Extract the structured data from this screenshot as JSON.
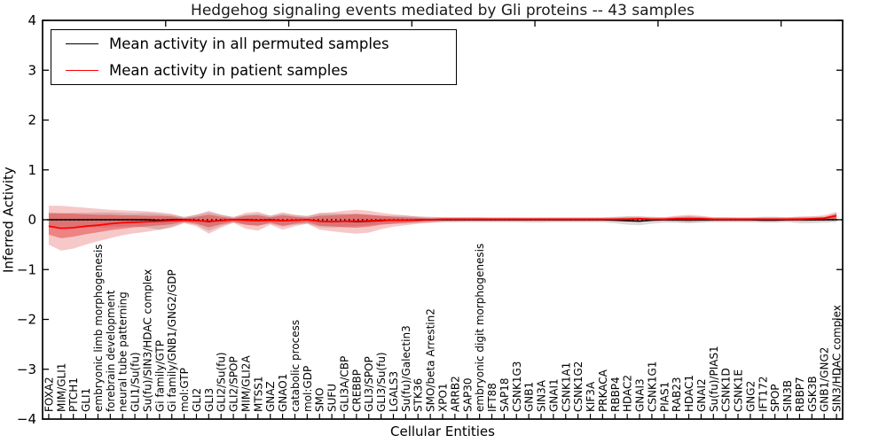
{
  "title": "Hedgehog signaling events mediated by Gli proteins -- 43 samples",
  "axes": {
    "x_label": "Cellular Entities",
    "y_label": "Inferred Activity"
  },
  "legend": {
    "items": [
      {
        "label": "Mean activity in all permuted samples",
        "color": "#000000"
      },
      {
        "label": "Mean activity in patient samples",
        "color": "#ff0000"
      }
    ]
  },
  "colors": {
    "background": "#ffffff",
    "axis": "#000000",
    "patient_line": "#ff0000",
    "permuted_line": "#000000",
    "patient_band_inner": "rgba(225,35,35,0.42)",
    "patient_band_outer": "rgba(225,35,35,0.25)",
    "permuted_band": "rgba(135,135,135,0.30)"
  },
  "chart_data": {
    "type": "line",
    "title": "Hedgehog signaling events mediated by Gli proteins -- 43 samples",
    "xlabel": "Cellular Entities",
    "ylabel": "Inferred Activity",
    "ylim": [
      -4,
      4
    ],
    "yticks": [
      4,
      3,
      2,
      1,
      0,
      -1,
      -2,
      -3,
      -4
    ],
    "x_major_tick_step": 10,
    "grid": false,
    "legend_position": "upper left",
    "zero_line_style": "dotted",
    "categories": [
      "FOXA2",
      "MIM/GLI1",
      "PTCH1",
      "GLI1",
      "embryonic limb morphogenesis",
      "forebrain development",
      "neural tube patterning",
      "GLI1/Su(fu)",
      "Su(fu)/SIN3/HDAC complex",
      "Gi family/GTP",
      "Gi family/GNB1/GNG2/GDP",
      "mol:GTP",
      "GLI2",
      "GLI3",
      "GLI2/Su(fu)",
      "GLI2/SPOP",
      "MIM/GLI2A",
      "MTSS1",
      "GNAZ",
      "GNAO1",
      "catabolic process",
      "mol:GDP",
      "SMO",
      "SUFU",
      "GLI3A/CBP",
      "CREBBP",
      "GLI3/SPOP",
      "GLI3/Su(fu)",
      "LGALS3",
      "Su(fu)/Galectin3",
      "STK36",
      "SMO/beta Arrestin2",
      "XPO1",
      "ARRB2",
      "SAP30",
      "embryonic digit morphogenesis",
      "IFT88",
      "SAP18",
      "CSNK1G3",
      "GNB1",
      "SIN3A",
      "GNAI1",
      "CSNK1A1",
      "CSNK1G2",
      "KIF3A",
      "PRKACA",
      "RBBP4",
      "HDAC2",
      "GNAI3",
      "CSNK1G1",
      "PIAS1",
      "RAB23",
      "HDAC1",
      "GNAI2",
      "Su(fu)/PIAS1",
      "CSNK1D",
      "CSNK1E",
      "GNG2",
      "IFT172",
      "SPOP",
      "SIN3B",
      "RBBP7",
      "GSK3B",
      "GNB1/GNG2",
      "SIN3/HDAC complex"
    ],
    "series": [
      {
        "id": "permuted-mean",
        "name": "Mean activity in all permuted samples",
        "color": "#000000",
        "width": 1.4,
        "values": [
          0,
          0,
          0,
          0,
          0,
          0,
          0,
          0,
          0,
          -0.01,
          0,
          0,
          -0.01,
          -0.04,
          -0.01,
          0,
          0,
          -0.01,
          0,
          -0.02,
          -0.01,
          0,
          -0.03,
          -0.04,
          -0.03,
          -0.04,
          -0.03,
          -0.02,
          -0.01,
          -0.01,
          -0.01,
          0,
          0,
          0,
          0,
          0,
          0,
          0,
          0,
          0,
          0,
          0,
          0,
          0,
          0,
          0,
          -0.01,
          -0.02,
          -0.03,
          -0.01,
          0,
          0,
          0,
          0,
          0,
          0,
          0,
          0,
          -0.01,
          -0.01,
          0,
          0,
          0,
          0,
          0
        ]
      },
      {
        "id": "patient-mean",
        "name": "Mean activity in patient samples",
        "color": "#ff0000",
        "width": 1.8,
        "values": [
          -0.13,
          -0.17,
          -0.16,
          -0.13,
          -0.11,
          -0.08,
          -0.06,
          -0.05,
          -0.04,
          -0.03,
          -0.02,
          -0.01,
          -0.02,
          -0.03,
          -0.02,
          0,
          -0.01,
          -0.02,
          -0.01,
          -0.02,
          -0.01,
          0,
          -0.03,
          -0.04,
          -0.03,
          -0.03,
          -0.02,
          -0.01,
          -0.01,
          -0.01,
          0,
          0,
          0.01,
          0.01,
          0.01,
          0.01,
          0.01,
          0.01,
          0.01,
          0.01,
          0.01,
          0.01,
          0.01,
          0.01,
          0.01,
          0.01,
          0.01,
          0.01,
          0.02,
          0.01,
          0.01,
          0.02,
          0.02,
          0.02,
          0.01,
          0.01,
          0.01,
          0.01,
          0.01,
          0.01,
          0.01,
          0.01,
          0.02,
          0.03,
          0.08
        ]
      }
    ],
    "bands": [
      {
        "id": "permuted-range",
        "name": "permuted samples spread",
        "color": "rgba(135,135,135,0.30)",
        "hi": [
          0.12,
          0.13,
          0.14,
          0.14,
          0.15,
          0.15,
          0.14,
          0.13,
          0.14,
          0.12,
          0.1,
          0.06,
          0.1,
          0.15,
          0.1,
          0.06,
          0.1,
          0.12,
          0.08,
          0.12,
          0.09,
          0.08,
          0.12,
          0.13,
          0.12,
          0.11,
          0.1,
          0.08,
          0.08,
          0.08,
          0.07,
          0.06,
          0.05,
          0.05,
          0.05,
          0.05,
          0.05,
          0.05,
          0.05,
          0.05,
          0.05,
          0.05,
          0.05,
          0.05,
          0.05,
          0.05,
          0.06,
          0.07,
          0.07,
          0.06,
          0.05,
          0.06,
          0.07,
          0.06,
          0.05,
          0.05,
          0.05,
          0.05,
          0.06,
          0.06,
          0.05,
          0.06,
          0.06,
          0.06,
          0.06
        ],
        "lo": [
          -0.12,
          -0.13,
          -0.14,
          -0.14,
          -0.15,
          -0.15,
          -0.14,
          -0.13,
          -0.16,
          -0.2,
          -0.14,
          -0.06,
          -0.1,
          -0.22,
          -0.12,
          -0.06,
          -0.1,
          -0.12,
          -0.08,
          -0.14,
          -0.1,
          -0.08,
          -0.15,
          -0.16,
          -0.14,
          -0.13,
          -0.11,
          -0.09,
          -0.08,
          -0.08,
          -0.07,
          -0.06,
          -0.05,
          -0.05,
          -0.05,
          -0.05,
          -0.05,
          -0.05,
          -0.05,
          -0.06,
          -0.06,
          -0.05,
          -0.05,
          -0.05,
          -0.05,
          -0.05,
          -0.07,
          -0.1,
          -0.11,
          -0.08,
          -0.06,
          -0.06,
          -0.07,
          -0.06,
          -0.05,
          -0.05,
          -0.05,
          -0.05,
          -0.06,
          -0.06,
          -0.05,
          -0.07,
          -0.07,
          -0.06,
          -0.05
        ]
      },
      {
        "id": "patient-range-outer",
        "name": "patient samples outer spread",
        "color": "rgba(225,35,35,0.25)",
        "hi": [
          0.28,
          0.28,
          0.26,
          0.24,
          0.22,
          0.2,
          0.19,
          0.18,
          0.17,
          0.15,
          0.12,
          0.05,
          0.1,
          0.18,
          0.1,
          0.05,
          0.14,
          0.16,
          0.08,
          0.15,
          0.1,
          0.07,
          0.14,
          0.15,
          0.18,
          0.2,
          0.18,
          0.14,
          0.11,
          0.09,
          0.06,
          0.05,
          0.05,
          0.05,
          0.05,
          0.05,
          0.04,
          0.04,
          0.04,
          0.04,
          0.04,
          0.04,
          0.04,
          0.04,
          0.04,
          0.04,
          0.05,
          0.06,
          0.06,
          0.05,
          0.05,
          0.08,
          0.1,
          0.08,
          0.05,
          0.05,
          0.04,
          0.04,
          0.05,
          0.05,
          0.05,
          0.06,
          0.07,
          0.09,
          0.16
        ],
        "lo": [
          -0.5,
          -0.62,
          -0.58,
          -0.5,
          -0.43,
          -0.37,
          -0.31,
          -0.27,
          -0.24,
          -0.2,
          -0.16,
          -0.07,
          -0.13,
          -0.28,
          -0.16,
          -0.06,
          -0.18,
          -0.22,
          -0.1,
          -0.2,
          -0.13,
          -0.08,
          -0.2,
          -0.23,
          -0.26,
          -0.28,
          -0.26,
          -0.19,
          -0.14,
          -0.11,
          -0.08,
          -0.06,
          -0.04,
          -0.04,
          -0.03,
          -0.03,
          -0.03,
          -0.03,
          -0.03,
          -0.03,
          -0.03,
          -0.03,
          -0.03,
          -0.03,
          -0.03,
          -0.03,
          -0.03,
          -0.04,
          -0.04,
          -0.03,
          -0.03,
          -0.04,
          -0.05,
          -0.04,
          -0.03,
          -0.03,
          -0.03,
          -0.03,
          -0.03,
          -0.03,
          -0.03,
          -0.03,
          -0.03,
          -0.03,
          -0.02
        ]
      },
      {
        "id": "patient-range-inner",
        "name": "patient samples inner spread",
        "color": "rgba(225,35,35,0.42)",
        "hi": [
          0.14,
          0.13,
          0.12,
          0.11,
          0.1,
          0.1,
          0.09,
          0.09,
          0.08,
          0.08,
          0.07,
          0.03,
          0.06,
          0.1,
          0.06,
          0.03,
          0.08,
          0.09,
          0.05,
          0.09,
          0.06,
          0.04,
          0.08,
          0.09,
          0.1,
          0.12,
          0.1,
          0.08,
          0.06,
          0.05,
          0.04,
          0.03,
          0.03,
          0.03,
          0.03,
          0.03,
          0.03,
          0.03,
          0.03,
          0.02,
          0.02,
          0.02,
          0.02,
          0.02,
          0.02,
          0.02,
          0.03,
          0.04,
          0.04,
          0.03,
          0.03,
          0.05,
          0.06,
          0.05,
          0.03,
          0.03,
          0.03,
          0.03,
          0.03,
          0.03,
          0.03,
          0.04,
          0.04,
          0.05,
          0.13
        ],
        "lo": [
          -0.3,
          -0.37,
          -0.34,
          -0.29,
          -0.25,
          -0.21,
          -0.18,
          -0.15,
          -0.13,
          -0.11,
          -0.09,
          -0.04,
          -0.08,
          -0.15,
          -0.09,
          -0.04,
          -0.1,
          -0.12,
          -0.06,
          -0.12,
          -0.08,
          -0.05,
          -0.12,
          -0.13,
          -0.15,
          -0.16,
          -0.14,
          -0.1,
          -0.08,
          -0.06,
          -0.04,
          -0.03,
          -0.02,
          -0.02,
          -0.02,
          -0.02,
          -0.02,
          -0.02,
          -0.02,
          -0.02,
          -0.02,
          -0.02,
          -0.02,
          -0.02,
          -0.02,
          -0.02,
          -0.02,
          -0.02,
          -0.02,
          -0.02,
          -0.02,
          -0.02,
          -0.03,
          -0.02,
          -0.02,
          -0.02,
          -0.02,
          -0.02,
          -0.02,
          -0.02,
          -0.02,
          -0.02,
          -0.02,
          -0.01,
          0.02
        ]
      }
    ]
  }
}
